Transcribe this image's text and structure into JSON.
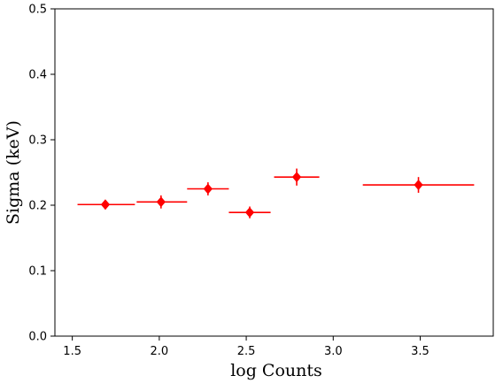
{
  "chart_data": {
    "type": "scatter",
    "title": "",
    "xlabel": "log Counts",
    "ylabel": "Sigma (keV)",
    "xlim": [
      1.4,
      3.92
    ],
    "ylim": [
      0.0,
      0.5
    ],
    "x_ticks": [
      1.5,
      2.0,
      2.5,
      3.0,
      3.5
    ],
    "x_tick_labels": [
      "1.5",
      "2.0",
      "2.5",
      "3.0",
      "3.5"
    ],
    "y_ticks": [
      0.0,
      0.1,
      0.2,
      0.3,
      0.4,
      0.5
    ],
    "y_tick_labels": [
      "0.0",
      "0.1",
      "0.2",
      "0.3",
      "0.4",
      "0.5"
    ],
    "grid": false,
    "marker": "diamond",
    "color": "#ff0000",
    "series": [
      {
        "x": [
          1.69,
          2.01,
          2.28,
          2.52,
          2.79,
          3.49
        ],
        "y": [
          0.201,
          0.205,
          0.225,
          0.189,
          0.243,
          0.231
        ],
        "x_err_low": [
          0.16,
          0.14,
          0.12,
          0.12,
          0.13,
          0.32
        ],
        "x_err_high": [
          0.17,
          0.15,
          0.12,
          0.12,
          0.13,
          0.32
        ],
        "y_err": [
          0.007,
          0.01,
          0.01,
          0.009,
          0.013,
          0.012
        ]
      }
    ]
  }
}
